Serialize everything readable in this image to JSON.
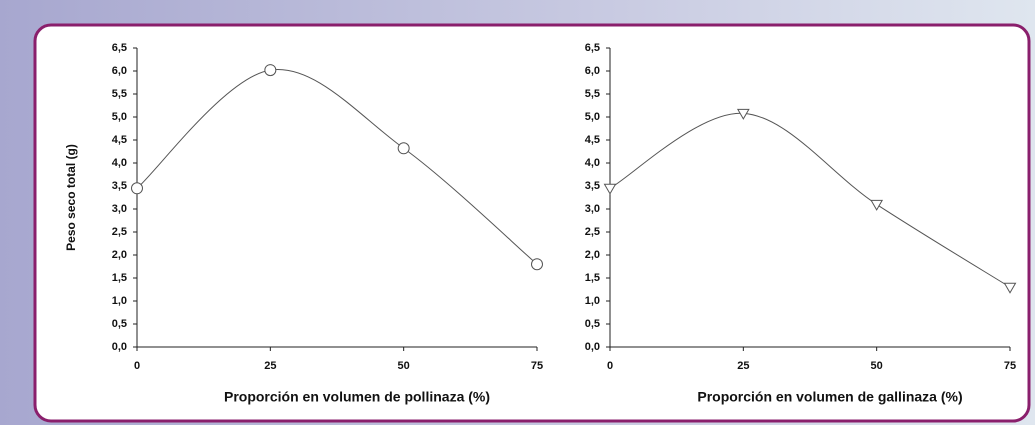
{
  "chart_data": [
    {
      "type": "line",
      "y_label": "Peso seco total (g)",
      "x_label": "Proporción en volumen de pollinaza (%)",
      "x": [
        0,
        25,
        50,
        75
      ],
      "values": [
        3.45,
        6.02,
        4.32,
        1.8
      ],
      "color": "#555555",
      "marker": "circle",
      "xlim": [
        0,
        75
      ],
      "xticks": [
        0,
        25,
        50,
        75
      ],
      "ylim": [
        0,
        6.5
      ],
      "yticks": [
        {
          "value": 0,
          "label": "0,0"
        },
        {
          "value": 0.5,
          "label": "0,5"
        },
        {
          "value": 1,
          "label": "1,0"
        },
        {
          "value": 1.5,
          "label": "1,5"
        },
        {
          "value": 2,
          "label": "2,0"
        },
        {
          "value": 2.5,
          "label": "2,5"
        },
        {
          "value": 3,
          "label": "3,0"
        },
        {
          "value": 3.5,
          "label": "3,5"
        },
        {
          "value": 4,
          "label": "4,0"
        },
        {
          "value": 4.5,
          "label": "4,5"
        },
        {
          "value": 5,
          "label": "5,0"
        },
        {
          "value": 5.5,
          "label": "5,5"
        },
        {
          "value": 6,
          "label": "6,0"
        },
        {
          "value": 6.5,
          "label": "6,5"
        }
      ]
    },
    {
      "type": "line",
      "x_label": "Proporción en volumen de gallinaza (%)",
      "x": [
        0,
        25,
        50,
        75
      ],
      "values": [
        3.45,
        5.08,
        3.1,
        1.3
      ],
      "color": "#555555",
      "marker": "triangle-down",
      "xlim": [
        0,
        75
      ],
      "xticks": [
        0,
        25,
        50,
        75
      ],
      "ylim": [
        0,
        6.5
      ],
      "yticks": [
        {
          "value": 0,
          "label": "0,0"
        },
        {
          "value": 0.5,
          "label": "0,5"
        },
        {
          "value": 1,
          "label": "1,0"
        },
        {
          "value": 1.5,
          "label": "1,5"
        },
        {
          "value": 2,
          "label": "2,0"
        },
        {
          "value": 2.5,
          "label": "2,5"
        },
        {
          "value": 3,
          "label": "3,0"
        },
        {
          "value": 3.5,
          "label": "3,5"
        },
        {
          "value": 4,
          "label": "4,0"
        },
        {
          "value": 4.5,
          "label": "4,5"
        },
        {
          "value": 5,
          "label": "5,0"
        },
        {
          "value": 5.5,
          "label": "5,5"
        },
        {
          "value": 6,
          "label": "6,0"
        },
        {
          "value": 6.5,
          "label": "6,5"
        }
      ]
    }
  ]
}
